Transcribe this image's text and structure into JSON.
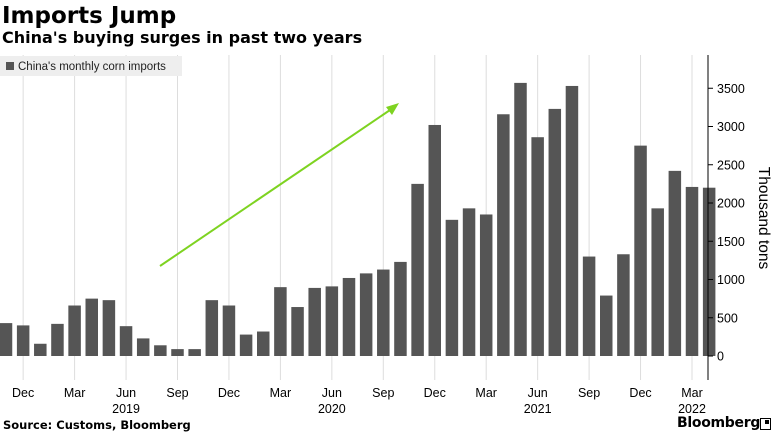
{
  "header": {
    "title": "Imports Jump",
    "subtitle": "China's buying surges in past two years"
  },
  "footer": {
    "source": "Source: Customs, Bloomberg",
    "brand": "Bloomberg"
  },
  "colors": {
    "bar": "#555555",
    "arrow": "#7ed321",
    "grid": "#dddddd",
    "legend_bg": "#eeeeee"
  },
  "chart_data": {
    "type": "bar",
    "title": "Imports Jump",
    "subtitle": "China's buying surges in past two years",
    "legend": [
      "China's monthly corn imports"
    ],
    "legend_position": "top-left",
    "ylabel": "Thousand tons",
    "ylim": [
      -350,
      3900
    ],
    "yticks": [
      0,
      500,
      1000,
      1500,
      2000,
      2500,
      3000,
      3500
    ],
    "y_axis_side": "right",
    "grid": "vertical",
    "categories": [
      "Nov 2018",
      "Dec 2018",
      "Jan 2019",
      "Feb 2019",
      "Mar 2019",
      "Apr 2019",
      "May 2019",
      "Jun 2019",
      "Jul 2019",
      "Aug 2019",
      "Sep 2019",
      "Oct 2019",
      "Nov 2019",
      "Dec 2019",
      "Jan 2020",
      "Feb 2020",
      "Mar 2020",
      "Apr 2020",
      "May 2020",
      "Jun 2020",
      "Jul 2020",
      "Aug 2020",
      "Sep 2020",
      "Oct 2020",
      "Nov 2020",
      "Dec 2020",
      "Jan 2021",
      "Feb 2021",
      "Mar 2021",
      "Apr 2021",
      "May 2021",
      "Jun 2021",
      "Jul 2021",
      "Aug 2021",
      "Sep 2021",
      "Oct 2021",
      "Nov 2021",
      "Dec 2021",
      "Jan 2022",
      "Feb 2022",
      "Mar 2022",
      "Apr 2022"
    ],
    "series": [
      {
        "name": "China's monthly corn imports",
        "values": [
          430,
          400,
          160,
          420,
          660,
          750,
          730,
          390,
          230,
          140,
          90,
          90,
          730,
          660,
          280,
          320,
          900,
          640,
          890,
          910,
          1020,
          1080,
          1130,
          1230,
          2250,
          3020,
          1780,
          1930,
          1850,
          3160,
          3570,
          2860,
          3230,
          3530,
          1300,
          790,
          1330,
          2750,
          1930,
          2420,
          2210,
          2200
        ]
      }
    ],
    "x_tick_labels": [
      {
        "label": "Dec",
        "index": 1
      },
      {
        "label": "Mar",
        "index": 4
      },
      {
        "label": "Jun",
        "index": 7
      },
      {
        "label": "Sep",
        "index": 10
      },
      {
        "label": "Dec",
        "index": 13
      },
      {
        "label": "Mar",
        "index": 16
      },
      {
        "label": "Jun",
        "index": 19
      },
      {
        "label": "Sep",
        "index": 22
      },
      {
        "label": "Dec",
        "index": 25
      },
      {
        "label": "Mar",
        "index": 28
      },
      {
        "label": "Jun",
        "index": 31
      },
      {
        "label": "Sep",
        "index": 34
      },
      {
        "label": "Dec",
        "index": 37
      },
      {
        "label": "Mar",
        "index": 40
      }
    ],
    "year_labels": [
      {
        "label": "2019",
        "index": 7
      },
      {
        "label": "2020",
        "index": 19
      },
      {
        "label": "2021",
        "index": 31
      },
      {
        "label": "2022",
        "index": 40
      }
    ],
    "annotation": "upward arrow"
  }
}
